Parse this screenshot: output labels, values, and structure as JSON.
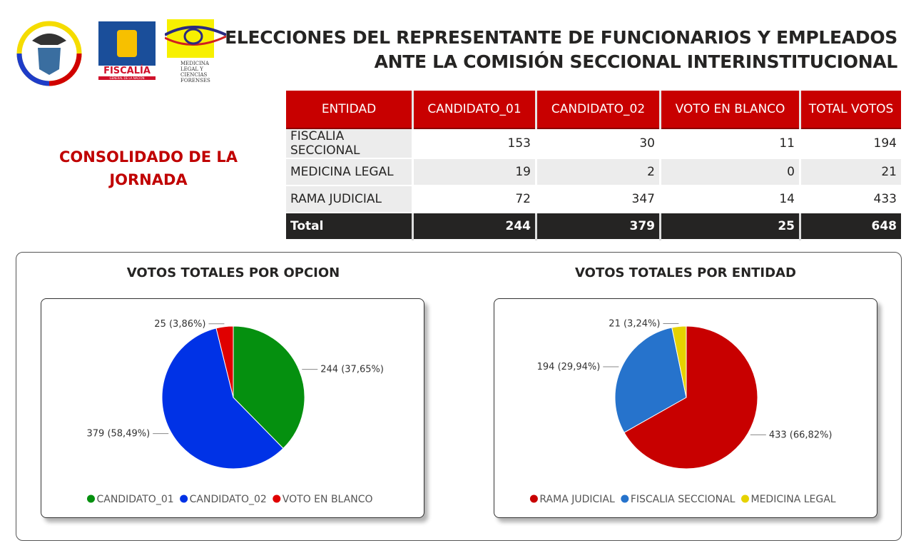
{
  "header": {
    "title_line1": "ELECCIONES DEL REPRESENTANTE DE FUNCIONARIOS Y EMPLEADOS",
    "title_line2": "ANTE LA COMISIÓN SECCIONAL INTERINSTITUCIONAL",
    "subtitle": "CONSOLIDADO DE LA JORNADA"
  },
  "logos": {
    "fiscalia": "FISCALÍA",
    "fiscalia_sub": "GENERAL DE LA NACIÓN",
    "medicina": "MEDICINA LEGAL Y CIENCIAS FORENSES",
    "medicina_side": "INSTITUTO NACIONAL DE"
  },
  "table": {
    "headers": [
      "ENTIDAD",
      "CANDIDATO_01",
      "CANDIDATO_02",
      "VOTO EN BLANCO",
      "TOTAL VOTOS"
    ],
    "rows": [
      [
        "FISCALIA SECCIONAL",
        "153",
        "30",
        "11",
        "194"
      ],
      [
        "MEDICINA LEGAL",
        "19",
        "2",
        "0",
        "21"
      ],
      [
        "RAMA JUDICIAL",
        "72",
        "347",
        "14",
        "433"
      ]
    ],
    "total": [
      "Total",
      "244",
      "379",
      "25",
      "648"
    ]
  },
  "chart_data": [
    {
      "type": "pie",
      "title": "VOTOS TOTALES POR OPCION",
      "categories": [
        "CANDIDATO_01",
        "CANDIDATO_02",
        "VOTO EN BLANCO"
      ],
      "values": [
        244,
        379,
        25
      ],
      "labels": [
        "244 (37,65%)",
        "379 (58,49%)",
        "25 (3,86%)"
      ],
      "colors": [
        "#05900f",
        "#0032e6",
        "#e00000"
      ],
      "legend": "bottom"
    },
    {
      "type": "pie",
      "title": "VOTOS TOTALES POR ENTIDAD",
      "categories": [
        "RAMA JUDICIAL",
        "FISCALIA SECCIONAL",
        "MEDICINA LEGAL"
      ],
      "values": [
        433,
        194,
        21
      ],
      "labels": [
        "433 (66,82%)",
        "194 (29,94%)",
        "21 (3,24%)"
      ],
      "colors": [
        "#c80000",
        "#2673cc",
        "#e6d200"
      ],
      "legend": "bottom"
    }
  ]
}
